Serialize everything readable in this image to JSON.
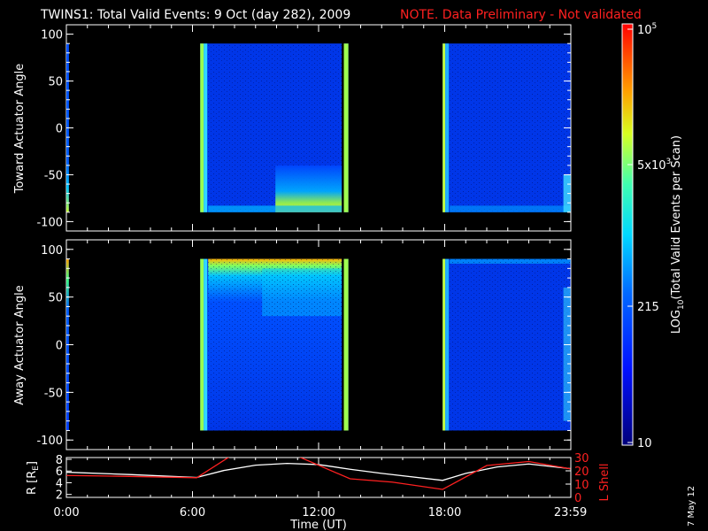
{
  "title": {
    "main": "TWINS1: Total Valid Events:  9 Oct (day 282), 2009",
    "note": "NOTE. Data Preliminary - Not validated"
  },
  "footer_date": "7 May 12",
  "colors": {
    "note": "#ff2020",
    "background": "#000000",
    "line_r": "#ffffff",
    "line_lshell": "#ff2020"
  },
  "chart_data": [
    {
      "type": "heatmap",
      "ylabel": "Toward Actuator Angle",
      "ylim": [
        -110,
        110
      ],
      "yticks": [
        "100",
        "50",
        "0",
        "-50",
        "-100"
      ],
      "xlim": [
        "0:00",
        "23:59"
      ],
      "data_intervals": [
        [
          "0:00",
          "0:07"
        ],
        [
          "6:22",
          "13:06"
        ],
        [
          "13:12",
          "13:25"
        ],
        [
          "17:54",
          "23:59"
        ]
      ],
      "notes": "Counts mostly in blue range (~100-300 per scan); higher (yellow-green) counts near -80 to -90 deg around 10:00-13:00."
    },
    {
      "type": "heatmap",
      "ylabel": "Away Actuator Angle",
      "ylim": [
        -110,
        110
      ],
      "yticks": [
        "100",
        "50",
        "0",
        "-50",
        "-100"
      ],
      "xlim": [
        "0:00",
        "23:59"
      ],
      "data_intervals": [
        [
          "0:00",
          "0:07"
        ],
        [
          "6:22",
          "13:06"
        ],
        [
          "13:12",
          "13:25"
        ],
        [
          "17:54",
          "23:59"
        ]
      ],
      "notes": "Higher counts (yellow/orange) near +85 deg along the top edge; green/cyan plume between 9:00 and 13:00."
    },
    {
      "type": "line",
      "xlabel": "Time (UT)",
      "xticks": [
        "0:00",
        "6:00",
        "12:00",
        "18:00",
        "23:59"
      ],
      "y_left_label": "R [R",
      "y_left_label_sub": "E",
      "y_left_label_end": "]",
      "y_left_ticks": [
        "8",
        "6",
        "4",
        "2"
      ],
      "y_left_lim": [
        1.5,
        8.3
      ],
      "y_right_label": "L Shell",
      "y_right_ticks": [
        "30",
        "20",
        "10",
        "0"
      ],
      "y_right_lim": [
        0,
        30
      ],
      "series": [
        {
          "axis": "left",
          "x_hours": [
            0,
            3,
            6.2,
            7.5,
            9,
            10.5,
            12,
            13.5,
            15,
            17.9,
            19,
            20.5,
            22,
            23.98
          ],
          "values": [
            5.8,
            5.4,
            4.9,
            6.1,
            7.0,
            7.3,
            7.1,
            6.3,
            5.6,
            4.4,
            5.6,
            6.7,
            7.2,
            6.4
          ]
        },
        {
          "axis": "right",
          "x_hours": [
            0,
            3,
            6.2,
            7.8,
            11.0,
            13.5,
            15.5,
            17.9,
            20.0,
            22.0,
            23.98
          ],
          "values": [
            16.5,
            15.8,
            14.8,
            31,
            31,
            14,
            11.5,
            6,
            24,
            27,
            21.5
          ]
        }
      ]
    }
  ],
  "colorbar": {
    "label": "LOG",
    "label_sub": "10",
    "label_rest": "(Total Valid Events per Scan)",
    "ticks": [
      {
        "base": "10",
        "exp": "5",
        "prefix": ""
      },
      {
        "base": "10",
        "exp": "3",
        "prefix": "5x"
      },
      {
        "base": "215",
        "exp": "",
        "prefix": ""
      },
      {
        "base": "10",
        "exp": "",
        "prefix": ""
      }
    ]
  }
}
